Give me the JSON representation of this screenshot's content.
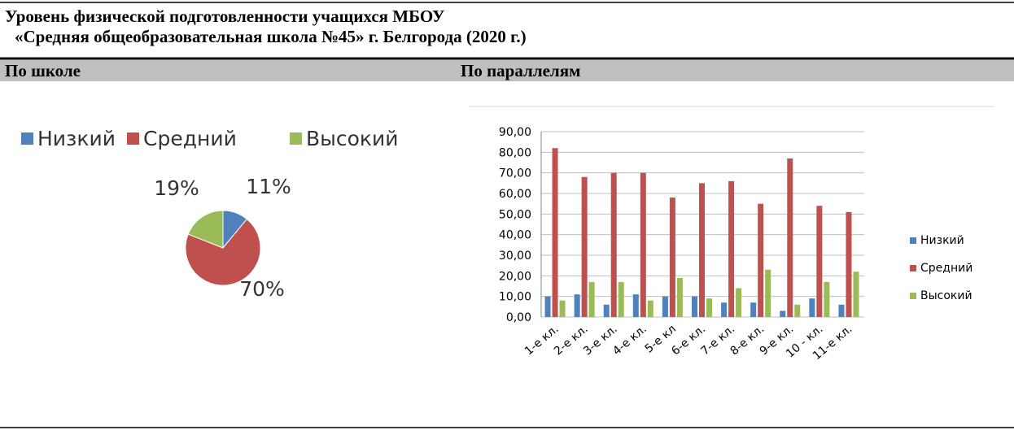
{
  "header": {
    "title": [
      "Уровень физической подготовленности учащихся МБОУ",
      "«Средняя общеобразовательная школа №45» г. Белгорода (2020 г.)"
    ]
  },
  "sections": [
    "По школе",
    "По параллелям"
  ],
  "chart_data": [
    {
      "type": "pie",
      "categories": [
        "Низкий",
        "Средний",
        "Высокий"
      ],
      "values": [
        11,
        70,
        19
      ],
      "value_labels": [
        "11%",
        "70%",
        "19%"
      ],
      "colors": [
        "#4f81bd",
        "#c0504d",
        "#9bbb59"
      ],
      "legend": "top"
    },
    {
      "type": "bar",
      "categories": [
        "1-е кл.",
        "2-е кл.",
        "3-е кл.",
        "4-е кл.",
        "5-е кл",
        "6-е кл.",
        "7-е кл.",
        "8-е кл.",
        "9-е кл.",
        "10 - кл.",
        "11-е кл."
      ],
      "series": [
        {
          "name": "Низкий",
          "color": "#4f81bd",
          "values": [
            10,
            11,
            6,
            11,
            10,
            10,
            7,
            7,
            3,
            9,
            6
          ]
        },
        {
          "name": "Средний",
          "color": "#c0504d",
          "values": [
            82,
            68,
            70,
            70,
            58,
            65,
            66,
            55,
            77,
            54,
            51
          ]
        },
        {
          "name": "Высокий",
          "color": "#9bbb59",
          "values": [
            8,
            17,
            17,
            8,
            19,
            9,
            14,
            23,
            6,
            17,
            22
          ]
        }
      ],
      "ylim": [
        0,
        90
      ],
      "yticks": [
        {
          "value": 0,
          "label": "0,00"
        },
        {
          "value": 10,
          "label": "10,00"
        },
        {
          "value": 20,
          "label": "20,00"
        },
        {
          "value": 30,
          "label": "30,00"
        },
        {
          "value": 40,
          "label": "40,00"
        },
        {
          "value": 50,
          "label": "50,00"
        },
        {
          "value": 60,
          "label": "60,00"
        },
        {
          "value": 70,
          "label": "70,00"
        },
        {
          "value": 80,
          "label": "80,00"
        },
        {
          "value": 90,
          "label": "90,00"
        }
      ],
      "grid": true,
      "legend": "right"
    }
  ]
}
